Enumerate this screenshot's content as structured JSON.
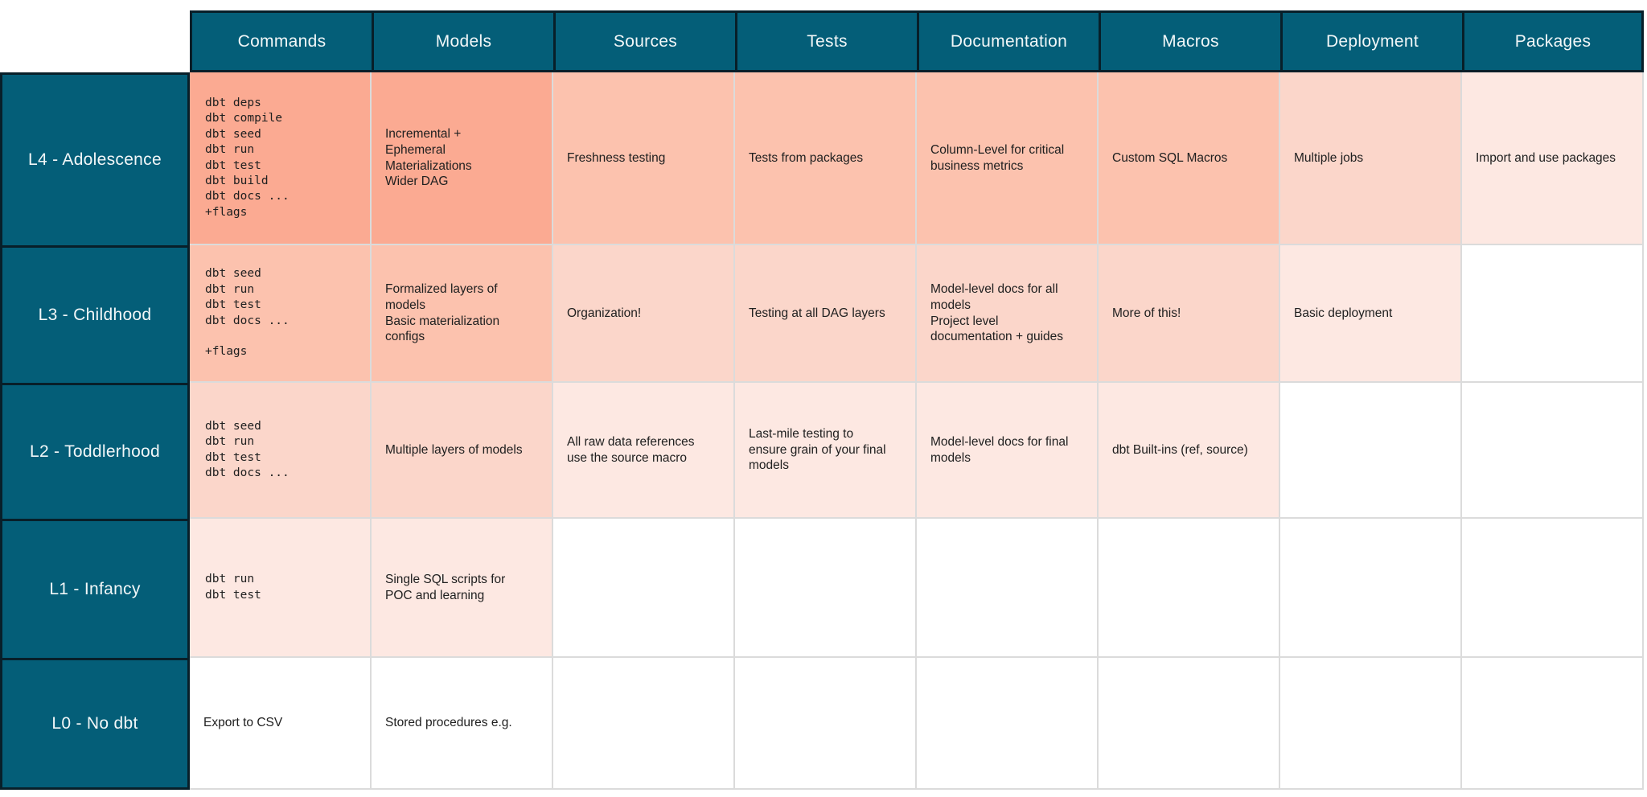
{
  "palette": {
    "teal": "#045e78",
    "dark_border": "#081f29",
    "grid_line": "#dbdbdb",
    "cell_text": "#202020",
    "header_text": "#f2f7f8",
    "shades": {
      "s1": "#fbaa92",
      "s2": "#fcc2ae",
      "s3": "#fbd6ca",
      "s4": "#fde8e2",
      "none": "#ffffff"
    }
  },
  "columns": [
    "Commands",
    "Models",
    "Sources",
    "Tests",
    "Documentation",
    "Macros",
    "Deployment",
    "Packages"
  ],
  "rows": [
    {
      "label": "L4 - Adolescence",
      "cells": [
        {
          "col": "Commands",
          "mono": true,
          "shade": "s1",
          "lines": [
            "dbt deps",
            "dbt compile",
            "dbt seed",
            "dbt run",
            "dbt test",
            "dbt build",
            "dbt docs ...",
            "+flags"
          ]
        },
        {
          "col": "Models",
          "mono": false,
          "shade": "s1",
          "lines": [
            "Incremental +",
            "Ephemeral",
            "Materializations",
            "Wider DAG"
          ]
        },
        {
          "col": "Sources",
          "mono": false,
          "shade": "s2",
          "lines": [
            "Freshness testing"
          ]
        },
        {
          "col": "Tests",
          "mono": false,
          "shade": "s2",
          "lines": [
            "Tests from packages"
          ]
        },
        {
          "col": "Documentation",
          "mono": false,
          "shade": "s2",
          "lines": [
            "Column-Level for critical",
            "business metrics"
          ]
        },
        {
          "col": "Macros",
          "mono": false,
          "shade": "s2",
          "lines": [
            "Custom SQL Macros"
          ]
        },
        {
          "col": "Deployment",
          "mono": false,
          "shade": "s3",
          "lines": [
            "Multiple jobs"
          ]
        },
        {
          "col": "Packages",
          "mono": false,
          "shade": "s4",
          "lines": [
            "Import and use packages"
          ]
        }
      ]
    },
    {
      "label": "L3 - Childhood",
      "cells": [
        {
          "col": "Commands",
          "mono": true,
          "shade": "s2",
          "lines": [
            "dbt seed",
            "dbt run",
            "dbt test",
            "dbt docs ...",
            "",
            "+flags"
          ]
        },
        {
          "col": "Models",
          "mono": false,
          "shade": "s2",
          "lines": [
            "Formalized layers of",
            "models",
            "Basic materialization",
            "configs"
          ]
        },
        {
          "col": "Sources",
          "mono": false,
          "shade": "s3",
          "lines": [
            "Organization!"
          ]
        },
        {
          "col": "Tests",
          "mono": false,
          "shade": "s3",
          "lines": [
            "Testing at all DAG layers"
          ]
        },
        {
          "col": "Documentation",
          "mono": false,
          "shade": "s3",
          "lines": [
            "Model-level docs for all",
            "models",
            "Project level",
            "documentation + guides"
          ]
        },
        {
          "col": "Macros",
          "mono": false,
          "shade": "s3",
          "lines": [
            "More of this!"
          ]
        },
        {
          "col": "Deployment",
          "mono": false,
          "shade": "s4",
          "lines": [
            "Basic deployment"
          ]
        },
        {
          "col": "Packages",
          "mono": false,
          "shade": "none",
          "lines": []
        }
      ]
    },
    {
      "label": "L2 - Toddlerhood",
      "cells": [
        {
          "col": "Commands",
          "mono": true,
          "shade": "s3",
          "lines": [
            "dbt seed",
            "dbt run",
            "dbt test",
            "dbt docs ..."
          ]
        },
        {
          "col": "Models",
          "mono": false,
          "shade": "s3",
          "lines": [
            "Multiple layers of models"
          ]
        },
        {
          "col": "Sources",
          "mono": false,
          "shade": "s4",
          "lines": [
            "All raw data references",
            "use the source macro"
          ]
        },
        {
          "col": "Tests",
          "mono": false,
          "shade": "s4",
          "lines": [
            "Last-mile testing to",
            "ensure grain of your final",
            "models"
          ]
        },
        {
          "col": "Documentation",
          "mono": false,
          "shade": "s4",
          "lines": [
            "Model-level docs for final",
            "models"
          ]
        },
        {
          "col": "Macros",
          "mono": false,
          "shade": "s4",
          "lines": [
            "dbt Built-ins (ref, source)"
          ]
        },
        {
          "col": "Deployment",
          "mono": false,
          "shade": "none",
          "lines": []
        },
        {
          "col": "Packages",
          "mono": false,
          "shade": "none",
          "lines": []
        }
      ]
    },
    {
      "label": "L1 - Infancy",
      "cells": [
        {
          "col": "Commands",
          "mono": true,
          "shade": "s4",
          "lines": [
            "dbt run",
            "dbt test"
          ]
        },
        {
          "col": "Models",
          "mono": false,
          "shade": "s4",
          "lines": [
            "Single SQL scripts for",
            "POC and learning"
          ]
        },
        {
          "col": "Sources",
          "mono": false,
          "shade": "none",
          "lines": []
        },
        {
          "col": "Tests",
          "mono": false,
          "shade": "none",
          "lines": []
        },
        {
          "col": "Documentation",
          "mono": false,
          "shade": "none",
          "lines": []
        },
        {
          "col": "Macros",
          "mono": false,
          "shade": "none",
          "lines": []
        },
        {
          "col": "Deployment",
          "mono": false,
          "shade": "none",
          "lines": []
        },
        {
          "col": "Packages",
          "mono": false,
          "shade": "none",
          "lines": []
        }
      ]
    },
    {
      "label": "L0 - No dbt",
      "cells": [
        {
          "col": "Commands",
          "mono": false,
          "shade": "none",
          "lines": [
            "Export to CSV"
          ]
        },
        {
          "col": "Models",
          "mono": false,
          "shade": "none",
          "lines": [
            "Stored procedures e.g."
          ]
        },
        {
          "col": "Sources",
          "mono": false,
          "shade": "none",
          "lines": []
        },
        {
          "col": "Tests",
          "mono": false,
          "shade": "none",
          "lines": []
        },
        {
          "col": "Documentation",
          "mono": false,
          "shade": "none",
          "lines": []
        },
        {
          "col": "Macros",
          "mono": false,
          "shade": "none",
          "lines": []
        },
        {
          "col": "Deployment",
          "mono": false,
          "shade": "none",
          "lines": []
        },
        {
          "col": "Packages",
          "mono": false,
          "shade": "none",
          "lines": []
        }
      ]
    }
  ]
}
